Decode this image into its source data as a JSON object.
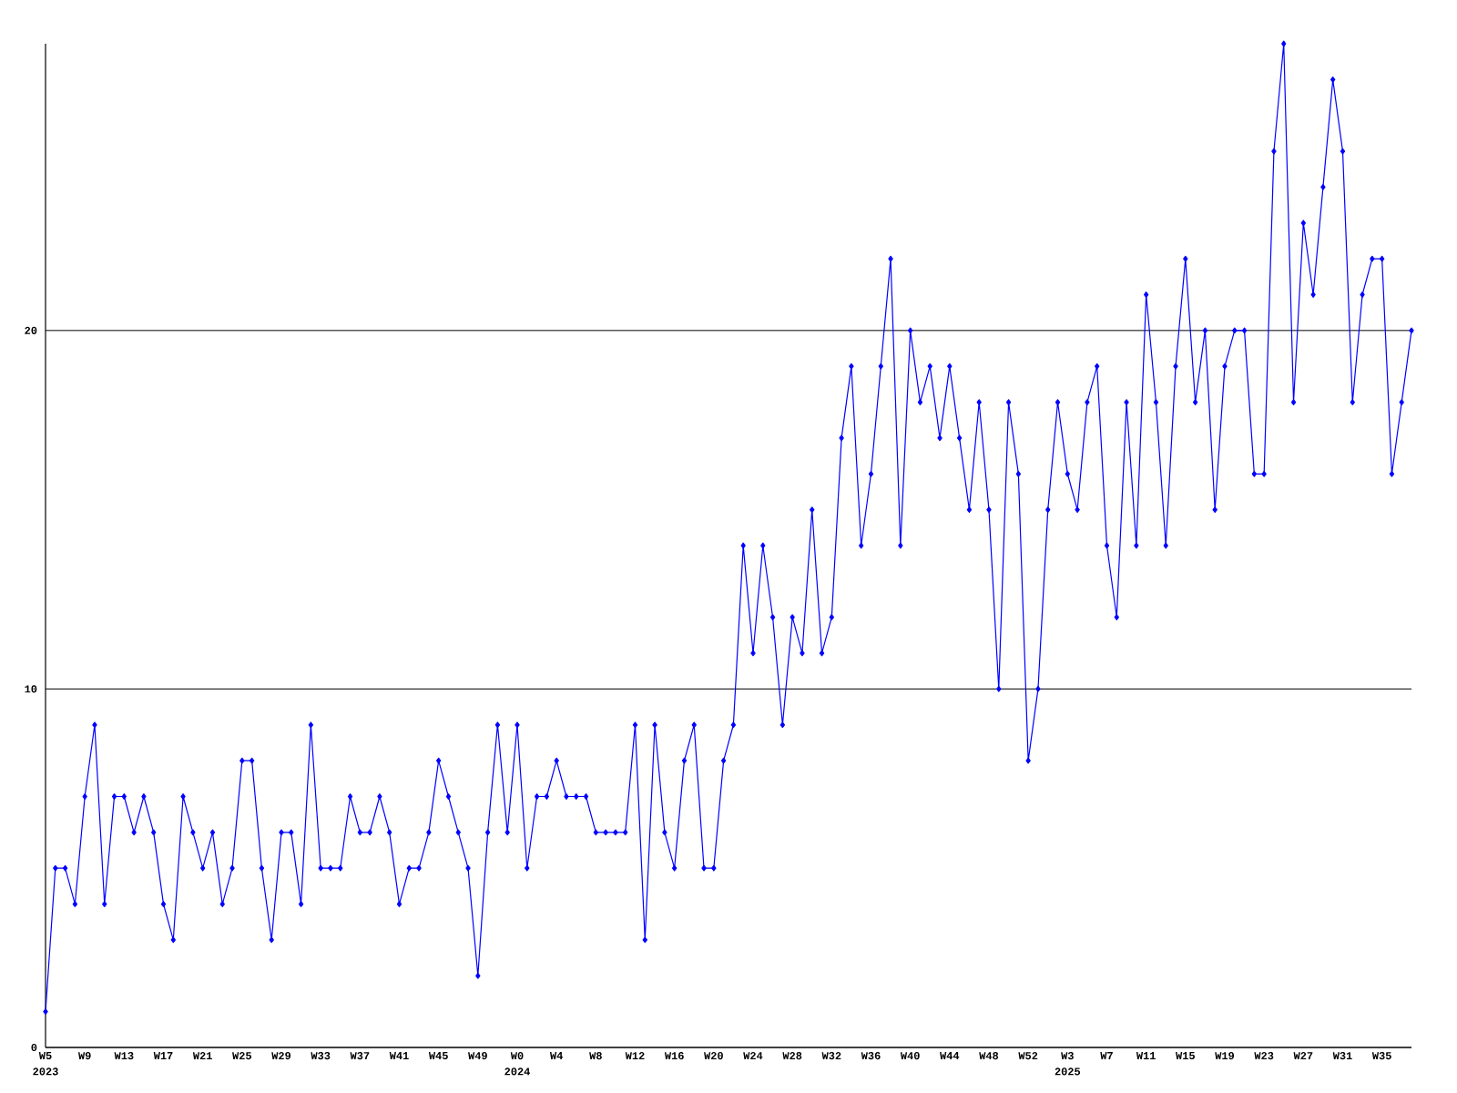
{
  "chart_data": {
    "type": "line",
    "categories": [
      "W5",
      null,
      null,
      null,
      "W9",
      null,
      null,
      null,
      "W13",
      null,
      null,
      null,
      "W17",
      null,
      null,
      null,
      "W21",
      null,
      null,
      null,
      "W25",
      null,
      null,
      null,
      "W29",
      null,
      null,
      null,
      "W33",
      null,
      null,
      null,
      "W37",
      null,
      null,
      null,
      "W41",
      null,
      null,
      null,
      "W45",
      null,
      null,
      null,
      "W49",
      null,
      null,
      null,
      "W0",
      null,
      null,
      null,
      "W4",
      null,
      null,
      null,
      "W8",
      null,
      null,
      null,
      "W12",
      null,
      null,
      null,
      "W16",
      null,
      null,
      null,
      "W20",
      null,
      null,
      null,
      "W24",
      null,
      null,
      null,
      "W28",
      null,
      null,
      null,
      "W32",
      null,
      null,
      null,
      "W36",
      null,
      null,
      null,
      "W40",
      null,
      null,
      null,
      "W44",
      null,
      null,
      null,
      "W48",
      null,
      null,
      null,
      "W52",
      null,
      null,
      null,
      "W3",
      null,
      null,
      null,
      "W7",
      null,
      null,
      null,
      "W11",
      null,
      null,
      null,
      "W15",
      null,
      null,
      null,
      "W19",
      null,
      null,
      null,
      "W23",
      null,
      null,
      null,
      "W27",
      null,
      null,
      null,
      "W31",
      null,
      null,
      null,
      "W35",
      null,
      null,
      null
    ],
    "values": [
      1,
      5,
      5,
      4,
      7,
      9,
      4,
      7,
      7,
      6,
      7,
      6,
      4,
      3,
      7,
      6,
      5,
      6,
      4,
      5,
      8,
      8,
      5,
      3,
      6,
      6,
      4,
      9,
      5,
      5,
      5,
      7,
      6,
      6,
      7,
      6,
      4,
      5,
      5,
      6,
      8,
      7,
      6,
      5,
      2,
      6,
      9,
      6,
      9,
      5,
      7,
      7,
      8,
      7,
      7,
      7,
      6,
      6,
      6,
      6,
      9,
      3,
      9,
      6,
      5,
      8,
      9,
      5,
      5,
      8,
      9,
      14,
      11,
      14,
      12,
      9,
      12,
      11,
      15,
      11,
      12,
      17,
      19,
      14,
      16,
      19,
      22,
      14,
      20,
      18,
      19,
      17,
      19,
      17,
      15,
      18,
      15,
      10,
      18,
      16,
      8,
      10,
      15,
      18,
      16,
      15,
      18,
      19,
      14,
      12,
      18,
      14,
      21,
      18,
      14,
      19,
      22,
      18,
      20,
      15,
      19,
      20,
      20,
      16,
      16,
      25,
      28,
      18,
      23,
      21,
      24,
      27,
      25,
      18,
      21,
      22,
      22,
      16,
      18,
      20
    ],
    "color": "#0000ff",
    "ylim": [
      0,
      28
    ],
    "yticks": [
      0,
      10,
      20
    ],
    "grid": "y",
    "marker": "diamond",
    "line_style": "solid",
    "annotations": [
      "2023",
      "2024",
      "2025"
    ]
  }
}
